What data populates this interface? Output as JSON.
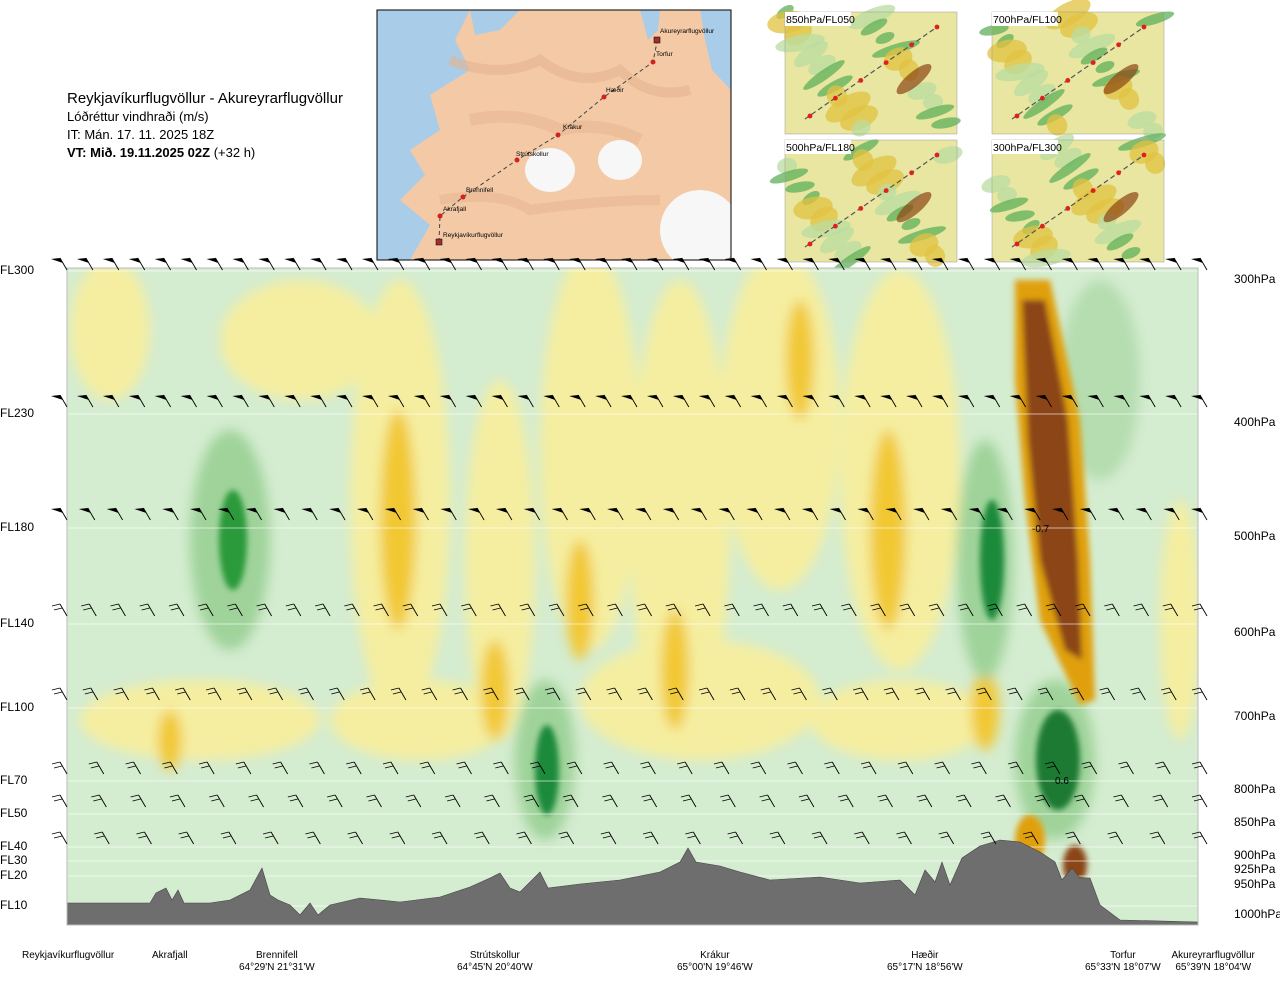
{
  "header": {
    "route": "Reykjavíkurflugvöllur - Akureyrarflugvöllur",
    "parameter": "Lóðréttur vindhraði (m/s)",
    "init_time": "IT: Mán. 17. 11. 2025 18Z",
    "valid_prefix": "VT: Mið. 19.11.2025 02Z",
    "valid_suffix": "(+32 h)"
  },
  "map": {
    "points": [
      "Akureyrarflugvöllur",
      "Torfur",
      "Hæðir",
      "Krákur",
      "Strútskollur",
      "Brennifell",
      "Akrafjall",
      "Reykjavíkurflugvöllur"
    ]
  },
  "thumbnails": [
    {
      "label": "850hPa/FL050"
    },
    {
      "label": "700hPa/FL100"
    },
    {
      "label": "500hPa/FL180"
    },
    {
      "label": "300hPa/FL300"
    }
  ],
  "flight_levels": [
    {
      "fl": "FL300",
      "hpa": "300hPa"
    },
    {
      "fl": "FL230",
      "hpa": "400hPa"
    },
    {
      "fl": "FL180",
      "hpa": "500hPa"
    },
    {
      "fl": "FL140",
      "hpa": "600hPa"
    },
    {
      "fl": "FL100",
      "hpa": "700hPa"
    },
    {
      "fl": "FL70",
      "hpa": "800hPa"
    },
    {
      "fl": "FL50",
      "hpa": "850hPa"
    },
    {
      "fl": "FL40",
      "hpa": "900hPa"
    },
    {
      "fl": "FL30",
      "hpa": "925hPa"
    },
    {
      "fl": "FL20",
      "hpa": "950hPa"
    },
    {
      "fl": "FL10",
      "hpa": "1000hPa"
    }
  ],
  "waypoints": [
    {
      "name": "Reykjavíkurflugvöllur",
      "coord": ""
    },
    {
      "name": "Akrafjall",
      "coord": ""
    },
    {
      "name": "Brennifell",
      "coord": "64°29'N 21°31'W"
    },
    {
      "name": "Strútskollur",
      "coord": "64°45'N 20°40'W"
    },
    {
      "name": "Krákur",
      "coord": "65°00'N 19°46'W"
    },
    {
      "name": "Hæðir",
      "coord": "65°17'N 18°56'W"
    },
    {
      "name": "Torfur",
      "coord": "65°33'N 18°07'W"
    },
    {
      "name": "Akureyrarflugvöllur",
      "coord": "65°39'N 18°04'W"
    }
  ],
  "chart_data": {
    "type": "heatmap",
    "title": "Lóðréttur vindhraði (m/s)",
    "x_labels": [
      "Reykjavíkurflugvöllur",
      "Akrafjall",
      "Brennifell",
      "Strútskollur",
      "Krákur",
      "Hæðir",
      "Torfur",
      "Akureyrarflugvöllur"
    ],
    "y_levels_hpa": [
      300,
      400,
      500,
      600,
      700,
      800,
      850,
      900,
      925,
      950,
      1000
    ],
    "annotations": [
      {
        "text": "-0.7",
        "near": "Torfur",
        "level_hpa": 500
      },
      {
        "text": "0.6",
        "near": "Torfur",
        "level_hpa": 800
      }
    ],
    "colors": {
      "strong_down": "#8b4513",
      "down": "#e0a010",
      "weak_down": "#f5eea0",
      "weak_up": "#d4ecd0",
      "up": "#7cc47c",
      "strong_up": "#1f8a3a",
      "terrain": "#6e6e6e"
    }
  }
}
